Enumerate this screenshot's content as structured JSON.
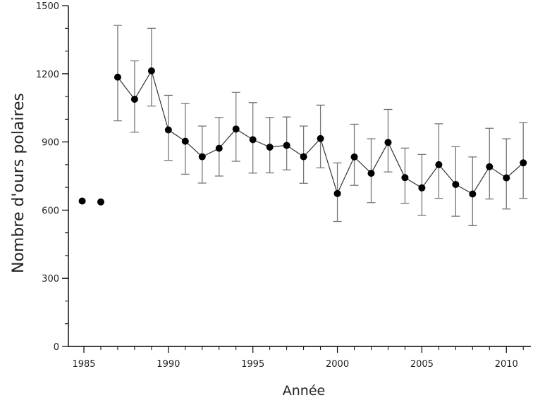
{
  "chart_data": {
    "type": "scatter",
    "title": "",
    "xlabel": "Année",
    "ylabel": "Nombre d'ours polaires",
    "xlim": [
      1985,
      2011
    ],
    "ylim": [
      0,
      1500
    ],
    "xticks": [
      1985,
      1990,
      1995,
      2000,
      2005,
      2010
    ],
    "yticks": [
      0,
      300,
      600,
      900,
      1200,
      1500
    ],
    "grid": false,
    "legend": "none",
    "colors": {
      "marker": "#000000",
      "line": "#333333",
      "errorbar": "#777777",
      "axis": "#000000"
    },
    "isolated_points": [
      {
        "x": 1984.9,
        "y": 640
      },
      {
        "x": 1986.0,
        "y": 636
      }
    ],
    "series": [
      {
        "x": [
          1987,
          1988,
          1989,
          1990,
          1991,
          1992,
          1993,
          1994,
          1995,
          1996,
          1997,
          1998,
          1999,
          2000,
          2001,
          2002,
          2003,
          2004,
          2005,
          2006,
          2007,
          2008,
          2009,
          2010,
          2011
        ],
        "y": [
          1185,
          1088,
          1213,
          953,
          903,
          835,
          872,
          957,
          910,
          877,
          885,
          835,
          915,
          673,
          834,
          762,
          898,
          743,
          698,
          800,
          713,
          671,
          791,
          742,
          808
        ],
        "lower": [
          993,
          943,
          1058,
          819,
          758,
          719,
          750,
          815,
          763,
          764,
          777,
          718,
          786,
          550,
          709,
          633,
          768,
          630,
          577,
          652,
          573,
          532,
          649,
          605,
          652
        ],
        "upper": [
          1413,
          1257,
          1400,
          1105,
          1070,
          970,
          1008,
          1118,
          1073,
          1008,
          1010,
          970,
          1062,
          808,
          978,
          914,
          1043,
          873,
          845,
          980,
          879,
          834,
          960,
          914,
          985
        ]
      }
    ]
  }
}
